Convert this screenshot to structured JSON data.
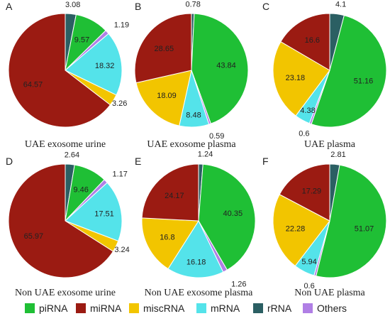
{
  "colors": {
    "piRNA": "#1fbf35",
    "miRNA": "#9b1b12",
    "miscRNA": "#f2c500",
    "mRNA": "#54e3ea",
    "rRNA": "#2b5f63",
    "Others": "#b07fe5"
  },
  "legend": [
    "piRNA",
    "miRNA",
    "miscRNA",
    "mRNA",
    "rRNA",
    "Others"
  ],
  "chart_data": [
    {
      "type": "pie",
      "letter": "A",
      "title": "UAE exosome urine",
      "slices": [
        {
          "name": "rRNA",
          "value": 3.08,
          "label": "3.08"
        },
        {
          "name": "piRNA",
          "value": 9.57,
          "label": "9.57"
        },
        {
          "name": "Others",
          "value": 1.19,
          "label": "1.19"
        },
        {
          "name": "mRNA",
          "value": 18.32,
          "label": "18.32"
        },
        {
          "name": "miscRNA",
          "value": 3.26,
          "label": "3.26"
        },
        {
          "name": "miRNA",
          "value": 64.57,
          "label": "64.57"
        }
      ]
    },
    {
      "type": "pie",
      "letter": "B",
      "title": "UAE exosome plasma",
      "slices": [
        {
          "name": "rRNA",
          "value": 0.78,
          "label": "0.78"
        },
        {
          "name": "piRNA",
          "value": 43.84,
          "label": "43.84"
        },
        {
          "name": "Others",
          "value": 0.59,
          "label": "0.59"
        },
        {
          "name": "mRNA",
          "value": 8.48,
          "label": "8.48"
        },
        {
          "name": "miscRNA",
          "value": 18.09,
          "label": "18.09"
        },
        {
          "name": "miRNA",
          "value": 28.65,
          "label": "28.65"
        }
      ]
    },
    {
      "type": "pie",
      "letter": "C",
      "title": "UAE plasma",
      "slices": [
        {
          "name": "rRNA",
          "value": 4.1,
          "label": "4.1"
        },
        {
          "name": "piRNA",
          "value": 51.16,
          "label": "51.16"
        },
        {
          "name": "Others",
          "value": 0.6,
          "label": "0.6"
        },
        {
          "name": "mRNA",
          "value": 4.38,
          "label": "4.38"
        },
        {
          "name": "miscRNA",
          "value": 23.18,
          "label": "23.18"
        },
        {
          "name": "miRNA",
          "value": 16.6,
          "label": "16.6"
        }
      ]
    },
    {
      "type": "pie",
      "letter": "D",
      "title": "Non UAE exosome urine",
      "slices": [
        {
          "name": "rRNA",
          "value": 2.64,
          "label": "2.64"
        },
        {
          "name": "piRNA",
          "value": 9.46,
          "label": "9.46"
        },
        {
          "name": "Others",
          "value": 1.17,
          "label": "1.17"
        },
        {
          "name": "mRNA",
          "value": 17.51,
          "label": "17.51"
        },
        {
          "name": "miscRNA",
          "value": 3.24,
          "label": "3.24"
        },
        {
          "name": "miRNA",
          "value": 65.97,
          "label": "65.97"
        }
      ]
    },
    {
      "type": "pie",
      "letter": "E",
      "title": "Non UAE exosome plasma",
      "slices": [
        {
          "name": "rRNA",
          "value": 1.24,
          "label": "1.24"
        },
        {
          "name": "piRNA",
          "value": 40.35,
          "label": "40.35"
        },
        {
          "name": "Others",
          "value": 1.26,
          "label": "1.26"
        },
        {
          "name": "mRNA",
          "value": 16.18,
          "label": "16.18"
        },
        {
          "name": "miscRNA",
          "value": 16.8,
          "label": "16.8"
        },
        {
          "name": "miRNA",
          "value": 24.17,
          "label": "24.17"
        }
      ]
    },
    {
      "type": "pie",
      "letter": "F",
      "title": "Non UAE plasma",
      "slices": [
        {
          "name": "rRNA",
          "value": 2.81,
          "label": "2.81"
        },
        {
          "name": "piRNA",
          "value": 51.07,
          "label": "51.07"
        },
        {
          "name": "Others",
          "value": 0.6,
          "label": "0.6"
        },
        {
          "name": "mRNA",
          "value": 5.94,
          "label": "5.94"
        },
        {
          "name": "miscRNA",
          "value": 22.28,
          "label": "22.28"
        },
        {
          "name": "miRNA",
          "value": 17.29,
          "label": "17.29"
        }
      ]
    }
  ]
}
